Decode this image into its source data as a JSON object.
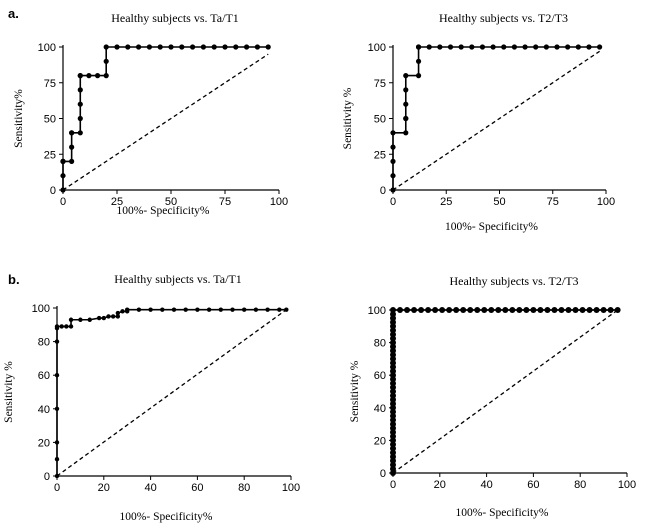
{
  "panel_labels": [
    "a.",
    "b."
  ],
  "chart_data": [
    {
      "id": "a1",
      "type": "line",
      "title": "Healthy  subjects  vs.  Ta/T1",
      "xlabel": "100%- Specificity%",
      "ylabel": "Sensitivity%",
      "xlim": [
        0,
        100
      ],
      "ylim": [
        0,
        100
      ],
      "xticks": [
        0,
        25,
        50,
        75,
        100
      ],
      "yticks": [
        0,
        25,
        50,
        75,
        100
      ],
      "tick_labels_x": [
        "0",
        "25",
        "50",
        "75",
        "100"
      ],
      "tick_labels_y": [
        "0",
        "25",
        "50",
        "75",
        "100"
      ],
      "roc": {
        "x": [
          0,
          0,
          0,
          0,
          0,
          4,
          4,
          4,
          4,
          8,
          8,
          8,
          8,
          8,
          8,
          12,
          16,
          20,
          20,
          20,
          25,
          30,
          35,
          40,
          45,
          50,
          55,
          60,
          65,
          70,
          75,
          80,
          85,
          90,
          95
        ],
        "y": [
          0,
          10,
          20,
          20,
          20,
          20,
          30,
          40,
          40,
          40,
          50,
          60,
          70,
          80,
          80,
          80,
          80,
          80,
          90,
          100,
          100,
          100,
          100,
          100,
          100,
          100,
          100,
          100,
          100,
          100,
          100,
          100,
          100,
          100,
          100
        ]
      },
      "reference": {
        "x": [
          0,
          95
        ],
        "y": [
          0,
          95
        ]
      }
    },
    {
      "id": "a2",
      "type": "line",
      "title": "Healthy  subjects  vs.  T2/T3",
      "xlabel": "100%- Specificity%",
      "ylabel": "Sensitivity  %",
      "xlim": [
        0,
        100
      ],
      "ylim": [
        0,
        100
      ],
      "xticks": [
        0,
        25,
        50,
        75,
        100
      ],
      "yticks": [
        0,
        25,
        50,
        75,
        100
      ],
      "tick_labels_x": [
        "0",
        "25",
        "50",
        "75",
        "100"
      ],
      "tick_labels_y": [
        "0",
        "25",
        "50",
        "75",
        "100"
      ],
      "roc": {
        "x": [
          0,
          0,
          0,
          0,
          0,
          6,
          6,
          6,
          6,
          6,
          6,
          12,
          12,
          12,
          12,
          17,
          22,
          27,
          32,
          37,
          42,
          47,
          52,
          57,
          62,
          67,
          72,
          77,
          82,
          87,
          92,
          97
        ],
        "y": [
          0,
          10,
          20,
          30,
          40,
          40,
          50,
          50,
          60,
          70,
          80,
          80,
          90,
          100,
          100,
          100,
          100,
          100,
          100,
          100,
          100,
          100,
          100,
          100,
          100,
          100,
          100,
          100,
          100,
          100,
          100,
          100
        ]
      },
      "reference": {
        "x": [
          0,
          97
        ],
        "y": [
          0,
          97
        ]
      }
    },
    {
      "id": "b1",
      "type": "line",
      "title": "Healthy  subjects  vs.  Ta/T1",
      "xlabel": "100%- Specificity%",
      "ylabel": "Sensitivity  %",
      "xlim": [
        0,
        100
      ],
      "ylim": [
        0,
        100
      ],
      "xticks": [
        0,
        20,
        40,
        60,
        80,
        100
      ],
      "yticks": [
        0,
        20,
        40,
        60,
        80,
        100
      ],
      "tick_labels_x": [
        "0",
        "20",
        "40",
        "60",
        "80",
        "100"
      ],
      "tick_labels_y": [
        "0",
        "20",
        "40",
        "60",
        "80",
        "100"
      ],
      "roc": {
        "x": [
          0,
          0,
          0,
          0,
          0,
          0,
          0,
          0,
          2,
          4,
          6,
          6,
          10,
          14,
          18,
          20,
          22,
          24,
          26,
          26,
          28,
          30,
          30,
          35,
          40,
          45,
          50,
          55,
          60,
          65,
          70,
          75,
          80,
          85,
          90,
          95,
          98
        ],
        "y": [
          0,
          10,
          20,
          40,
          60,
          80,
          88,
          89,
          89,
          89,
          89,
          93,
          93,
          93,
          94,
          94,
          95,
          95,
          95,
          97,
          98,
          98,
          99,
          99,
          99,
          99,
          99,
          99,
          99,
          99,
          99,
          99,
          99,
          99,
          99,
          99,
          99
        ]
      },
      "reference": {
        "x": [
          0,
          98
        ],
        "y": [
          0,
          99
        ]
      }
    },
    {
      "id": "b2",
      "type": "line",
      "title": "Healthy  subjects  vs.  T2/T3",
      "xlabel": "100%- Specificity%",
      "ylabel": "Sensitivity  %",
      "xlim": [
        0,
        100
      ],
      "ylim": [
        0,
        100
      ],
      "xticks": [
        0,
        20,
        40,
        60,
        80,
        100
      ],
      "yticks": [
        0,
        20,
        40,
        60,
        80,
        100
      ],
      "tick_labels_x": [
        "0",
        "20",
        "40",
        "60",
        "80",
        "100"
      ],
      "tick_labels_y": [
        "0",
        "20",
        "40",
        "60",
        "80",
        "100"
      ],
      "roc": {
        "x": [
          0,
          0,
          0,
          0,
          0,
          0,
          0,
          0,
          0,
          0,
          0,
          0,
          0,
          0,
          0,
          0,
          0,
          0,
          0,
          0,
          0,
          0,
          0,
          0,
          0,
          0,
          0,
          0,
          0,
          0,
          0,
          0,
          0,
          0,
          0,
          0,
          0,
          0,
          0,
          0,
          0,
          3,
          6,
          9,
          12,
          15,
          18,
          21,
          24,
          27,
          30,
          33,
          36,
          39,
          42,
          45,
          48,
          51,
          54,
          57,
          60,
          63,
          66,
          69,
          72,
          75,
          78,
          81,
          84,
          87,
          90,
          93,
          96
        ],
        "y": [
          0,
          2.5,
          5,
          7.5,
          10,
          12.5,
          15,
          17.5,
          20,
          22.5,
          25,
          27.5,
          30,
          32.5,
          35,
          37.5,
          40,
          42.5,
          45,
          47.5,
          50,
          52.5,
          55,
          57.5,
          60,
          62.5,
          65,
          67.5,
          70,
          72.5,
          75,
          77.5,
          80,
          82.5,
          85,
          87.5,
          90,
          92.5,
          95,
          97.5,
          100,
          100,
          100,
          100,
          100,
          100,
          100,
          100,
          100,
          100,
          100,
          100,
          100,
          100,
          100,
          100,
          100,
          100,
          100,
          100,
          100,
          100,
          100,
          100,
          100,
          100,
          100,
          100,
          100,
          100,
          100,
          100,
          100
        ]
      },
      "reference": {
        "x": [
          0,
          96
        ],
        "y": [
          0,
          100
        ]
      }
    }
  ]
}
